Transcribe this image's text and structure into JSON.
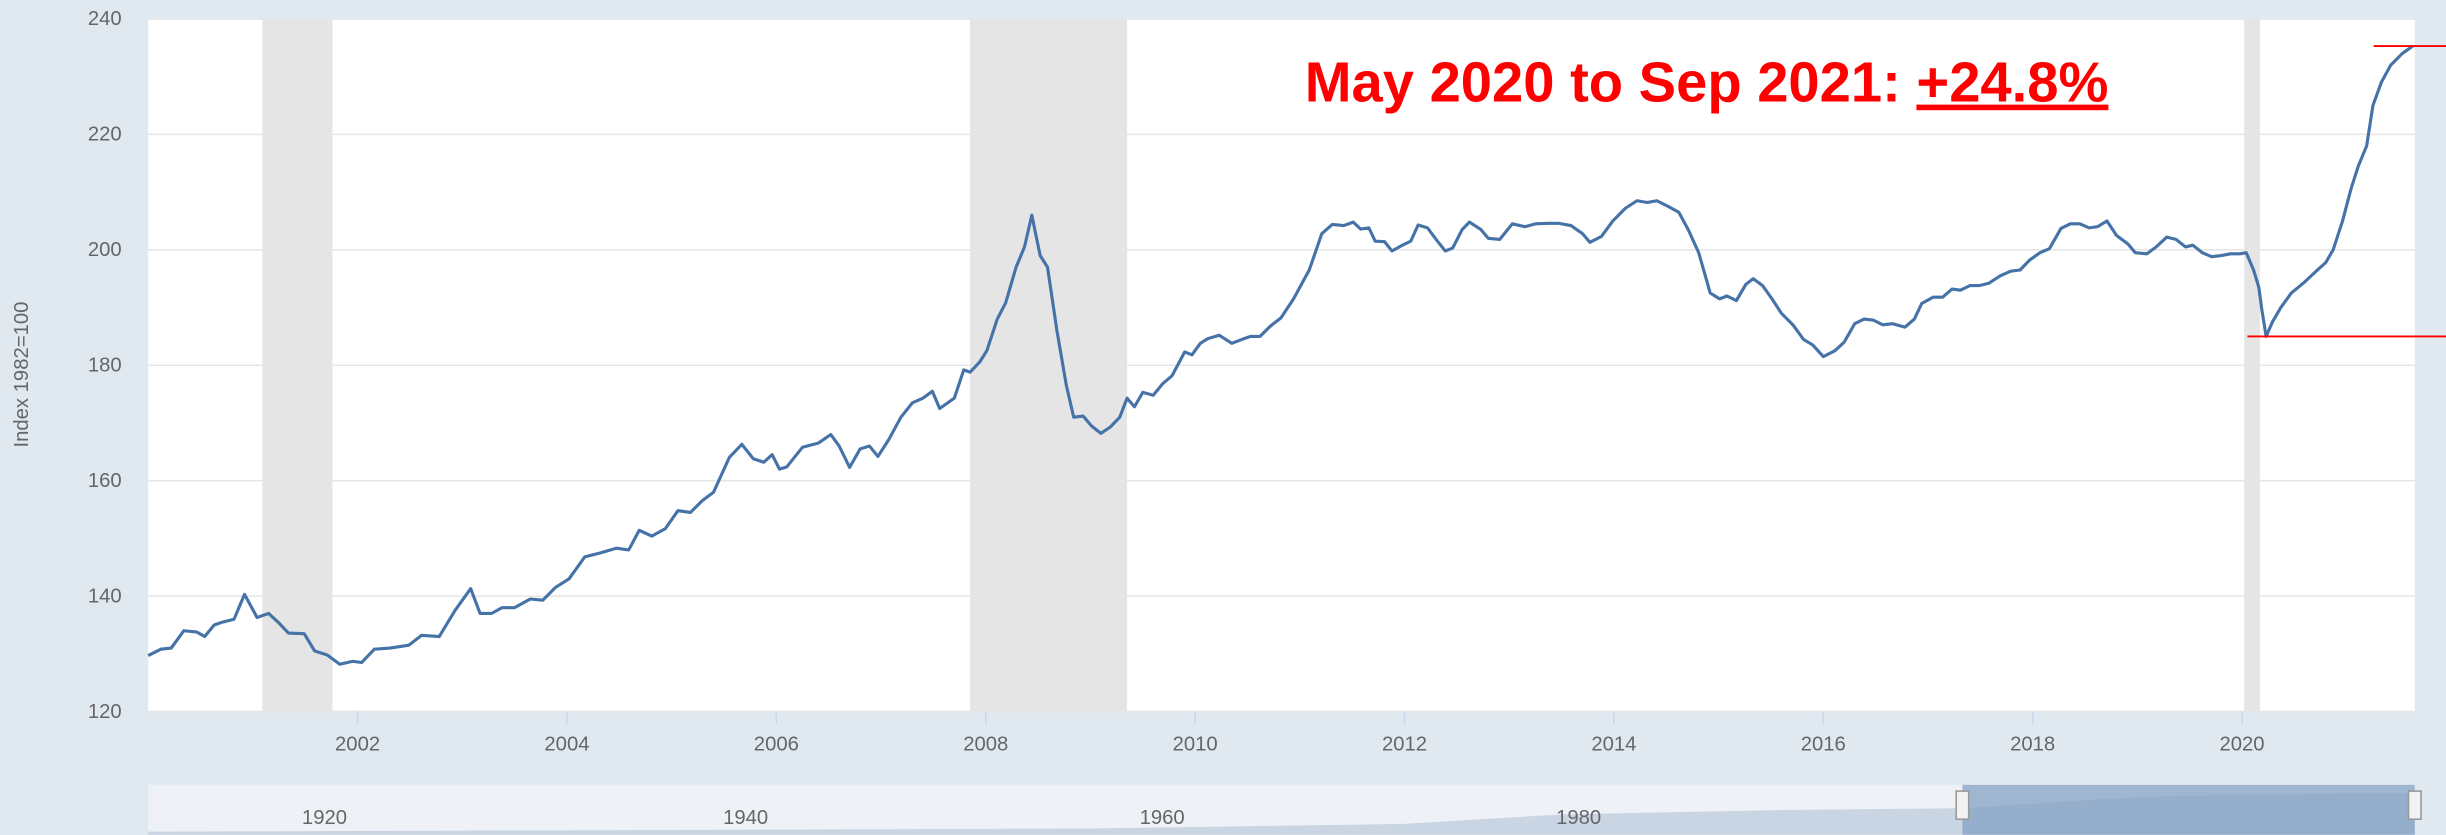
{
  "chart_data": {
    "type": "line",
    "annotation": {
      "text": "May 2020 to Sep 2021:",
      "change": "+24.8%"
    },
    "ylabel": "Index 1982=100",
    "xlim": [
      2000,
      2021.65
    ],
    "ylim": [
      120,
      240
    ],
    "xticks": [
      2002,
      2004,
      2006,
      2008,
      2010,
      2012,
      2014,
      2016,
      2018,
      2020
    ],
    "yticks": [
      120,
      140,
      160,
      180,
      200,
      220,
      240
    ],
    "grid": true,
    "recessions": [
      [
        2001.09,
        2001.76
      ],
      [
        2007.85,
        2009.35
      ],
      [
        2020.02,
        2020.17
      ]
    ],
    "navigator_labels": [
      "1920",
      "1940",
      "1960",
      "1980"
    ],
    "series": [
      {
        "color": "#4572a7",
        "x": [
          2000.0,
          2000.12,
          2000.22,
          2000.34,
          2000.46,
          2000.54,
          2000.63,
          2000.71,
          2000.82,
          2000.92,
          2001.04,
          2001.15,
          2001.24,
          2001.34,
          2001.49,
          2001.59,
          2001.71,
          2001.83,
          2001.95,
          2002.04,
          2002.16,
          2002.31,
          2002.49,
          2002.61,
          2002.78,
          2002.93,
          2003.08,
          2003.17,
          2003.28,
          2003.38,
          2003.5,
          2003.65,
          2003.77,
          2003.89,
          2004.02,
          2004.17,
          2004.32,
          2004.47,
          2004.59,
          2004.69,
          2004.81,
          2004.94,
          2005.06,
          2005.18,
          2005.29,
          2005.4,
          2005.55,
          2005.67,
          2005.78,
          2005.88,
          2005.96,
          2006.03,
          2006.1,
          2006.25,
          2006.4,
          2006.52,
          2006.6,
          2006.7,
          2006.8,
          2006.89,
          2006.97,
          2007.07,
          2007.19,
          2007.3,
          2007.4,
          2007.49,
          2007.56,
          2007.7,
          2007.79,
          2007.85,
          2007.94,
          2008.01,
          2008.11,
          2008.19,
          2008.29,
          2008.37,
          2008.44,
          2008.52,
          2008.59,
          2008.68,
          2008.77,
          2008.84,
          2008.93,
          2009.01,
          2009.1,
          2009.19,
          2009.28,
          2009.35,
          2009.42,
          2009.5,
          2009.6,
          2009.69,
          2009.78,
          2009.9,
          2009.97,
          2010.05,
          2010.12,
          2010.23,
          2010.35,
          2010.45,
          2010.53,
          2010.62,
          2010.72,
          2010.82,
          2010.94,
          2011.09,
          2011.21,
          2011.31,
          2011.42,
          2011.51,
          2011.58,
          2011.66,
          2011.72,
          2011.81,
          2011.88,
          2011.98,
          2012.06,
          2012.13,
          2012.22,
          2012.31,
          2012.39,
          2012.46,
          2012.55,
          2012.62,
          2012.73,
          2012.8,
          2012.91,
          2013.03,
          2013.15,
          2013.25,
          2013.37,
          2013.47,
          2013.59,
          2013.7,
          2013.77,
          2013.88,
          2013.99,
          2014.11,
          2014.22,
          2014.32,
          2014.41,
          2014.52,
          2014.62,
          2014.71,
          2014.81,
          2014.92,
          2015.01,
          2015.08,
          2015.17,
          2015.26,
          2015.33,
          2015.42,
          2015.51,
          2015.6,
          2015.71,
          2015.81,
          2015.9,
          2016.0,
          2016.11,
          2016.2,
          2016.3,
          2016.39,
          2016.48,
          2016.57,
          2016.66,
          2016.78,
          2016.87,
          2016.94,
          2017.05,
          2017.14,
          2017.23,
          2017.31,
          2017.4,
          2017.49,
          2017.58,
          2017.69,
          2017.79,
          2017.88,
          2017.97,
          2018.07,
          2018.16,
          2018.27,
          2018.36,
          2018.45,
          2018.54,
          2018.62,
          2018.71,
          2018.8,
          2018.91,
          2018.98,
          2019.09,
          2019.18,
          2019.28,
          2019.37,
          2019.46,
          2019.53,
          2019.62,
          2019.71,
          2019.8,
          2019.89,
          2019.98,
          2020.04,
          2020.11,
          2020.16,
          2020.19,
          2020.23,
          2020.29,
          2020.37,
          2020.47,
          2020.59,
          2020.69,
          2020.8,
          2020.87,
          2020.96,
          2021.04,
          2021.11,
          2021.19,
          2021.25,
          2021.33,
          2021.42,
          2021.53,
          2021.63
        ],
        "values": [
          129.7,
          130.8,
          131,
          134,
          133.8,
          133,
          135,
          135.5,
          136,
          140.3,
          136.3,
          137,
          135.5,
          133.6,
          133.5,
          130.5,
          129.8,
          128.2,
          128.7,
          128.5,
          130.8,
          131,
          131.5,
          133.2,
          133,
          137.5,
          141.3,
          137,
          137,
          138,
          138,
          139.5,
          139.3,
          141.5,
          143,
          146.8,
          147.5,
          148.3,
          148,
          151.4,
          150.4,
          151.7,
          154.8,
          154.5,
          156.5,
          158,
          164,
          166.3,
          163.8,
          163.2,
          164.5,
          162,
          162.4,
          165.8,
          166.5,
          168,
          166,
          162.3,
          165.5,
          166,
          164.2,
          167,
          171,
          173.5,
          174.3,
          175.5,
          172.5,
          174.3,
          179.2,
          178.8,
          180.5,
          182.5,
          188,
          190.8,
          197,
          200.5,
          206,
          199,
          197,
          186,
          176.5,
          171,
          171.2,
          169.5,
          168.2,
          169.3,
          171,
          174.3,
          172.8,
          175.3,
          174.8,
          176.8,
          178.2,
          182.3,
          181.8,
          183.8,
          184.6,
          185.2,
          183.8,
          184.5,
          185,
          185,
          186.8,
          188.2,
          191.5,
          196.5,
          202.8,
          204.4,
          204.2,
          204.8,
          203.6,
          203.8,
          201.5,
          201.4,
          199.8,
          200.8,
          201.5,
          204.3,
          203.8,
          201.6,
          199.8,
          200.3,
          203.5,
          204.8,
          203.5,
          202,
          201.8,
          204.5,
          204,
          204.5,
          204.6,
          204.6,
          204.2,
          202.8,
          201.3,
          202.3,
          205,
          207.2,
          208.5,
          208.2,
          208.5,
          207.5,
          206.5,
          203.5,
          199.5,
          192.5,
          191.5,
          192,
          191.2,
          194,
          195,
          193.8,
          191.5,
          189,
          187,
          184.5,
          183.5,
          181.5,
          182.5,
          184,
          187.2,
          188,
          187.8,
          187,
          187.2,
          186.6,
          188,
          190.7,
          191.8,
          191.8,
          193.2,
          193,
          193.8,
          193.8,
          194.2,
          195.5,
          196.3,
          196.5,
          198.2,
          199.5,
          200.2,
          203.7,
          204.5,
          204.5,
          203.8,
          204,
          205,
          202.5,
          201,
          199.5,
          199.3,
          200.5,
          202.2,
          201.8,
          200.5,
          200.8,
          199.5,
          198.8,
          199,
          199.3,
          199.3,
          199.5,
          196.5,
          193.5,
          189.5,
          185,
          187.5,
          190,
          192.5,
          194.3,
          196,
          197.8,
          200,
          205,
          210.5,
          214.5,
          218,
          225,
          229,
          232,
          234,
          235.3
        ]
      }
    ]
  }
}
